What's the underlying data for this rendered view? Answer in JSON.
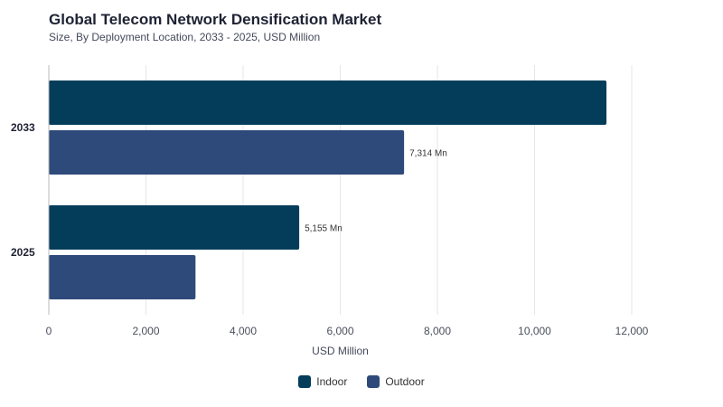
{
  "chart_data": {
    "type": "bar",
    "orientation": "horizontal",
    "title": "Global Telecom Network Densification Market",
    "subtitle": "Size, By Deployment Location, 2033 - 2025, USD Million",
    "xlabel": "USD Million",
    "ylabel": "",
    "xlim": [
      0,
      12000
    ],
    "xticks": [
      0,
      2000,
      4000,
      6000,
      8000,
      10000,
      12000
    ],
    "xtick_labels": [
      "0",
      "2,000",
      "4,000",
      "6,000",
      "8,000",
      "10,000",
      "12,000"
    ],
    "categories": [
      "2033",
      "2025"
    ],
    "series": [
      {
        "name": "Indoor",
        "values": [
          11480,
          5155
        ],
        "labels": [
          "",
          "5,155 Mn"
        ]
      },
      {
        "name": "Outdoor",
        "values": [
          7314,
          3020
        ],
        "labels": [
          "7,314 Mn",
          ""
        ]
      }
    ],
    "grid": true,
    "legend_position": "bottom-center"
  },
  "colors": {
    "Indoor": "#033d5a",
    "Outdoor": "#2e4a7a",
    "grid": "#e6e6e6",
    "axis": "#b9b9b9"
  }
}
